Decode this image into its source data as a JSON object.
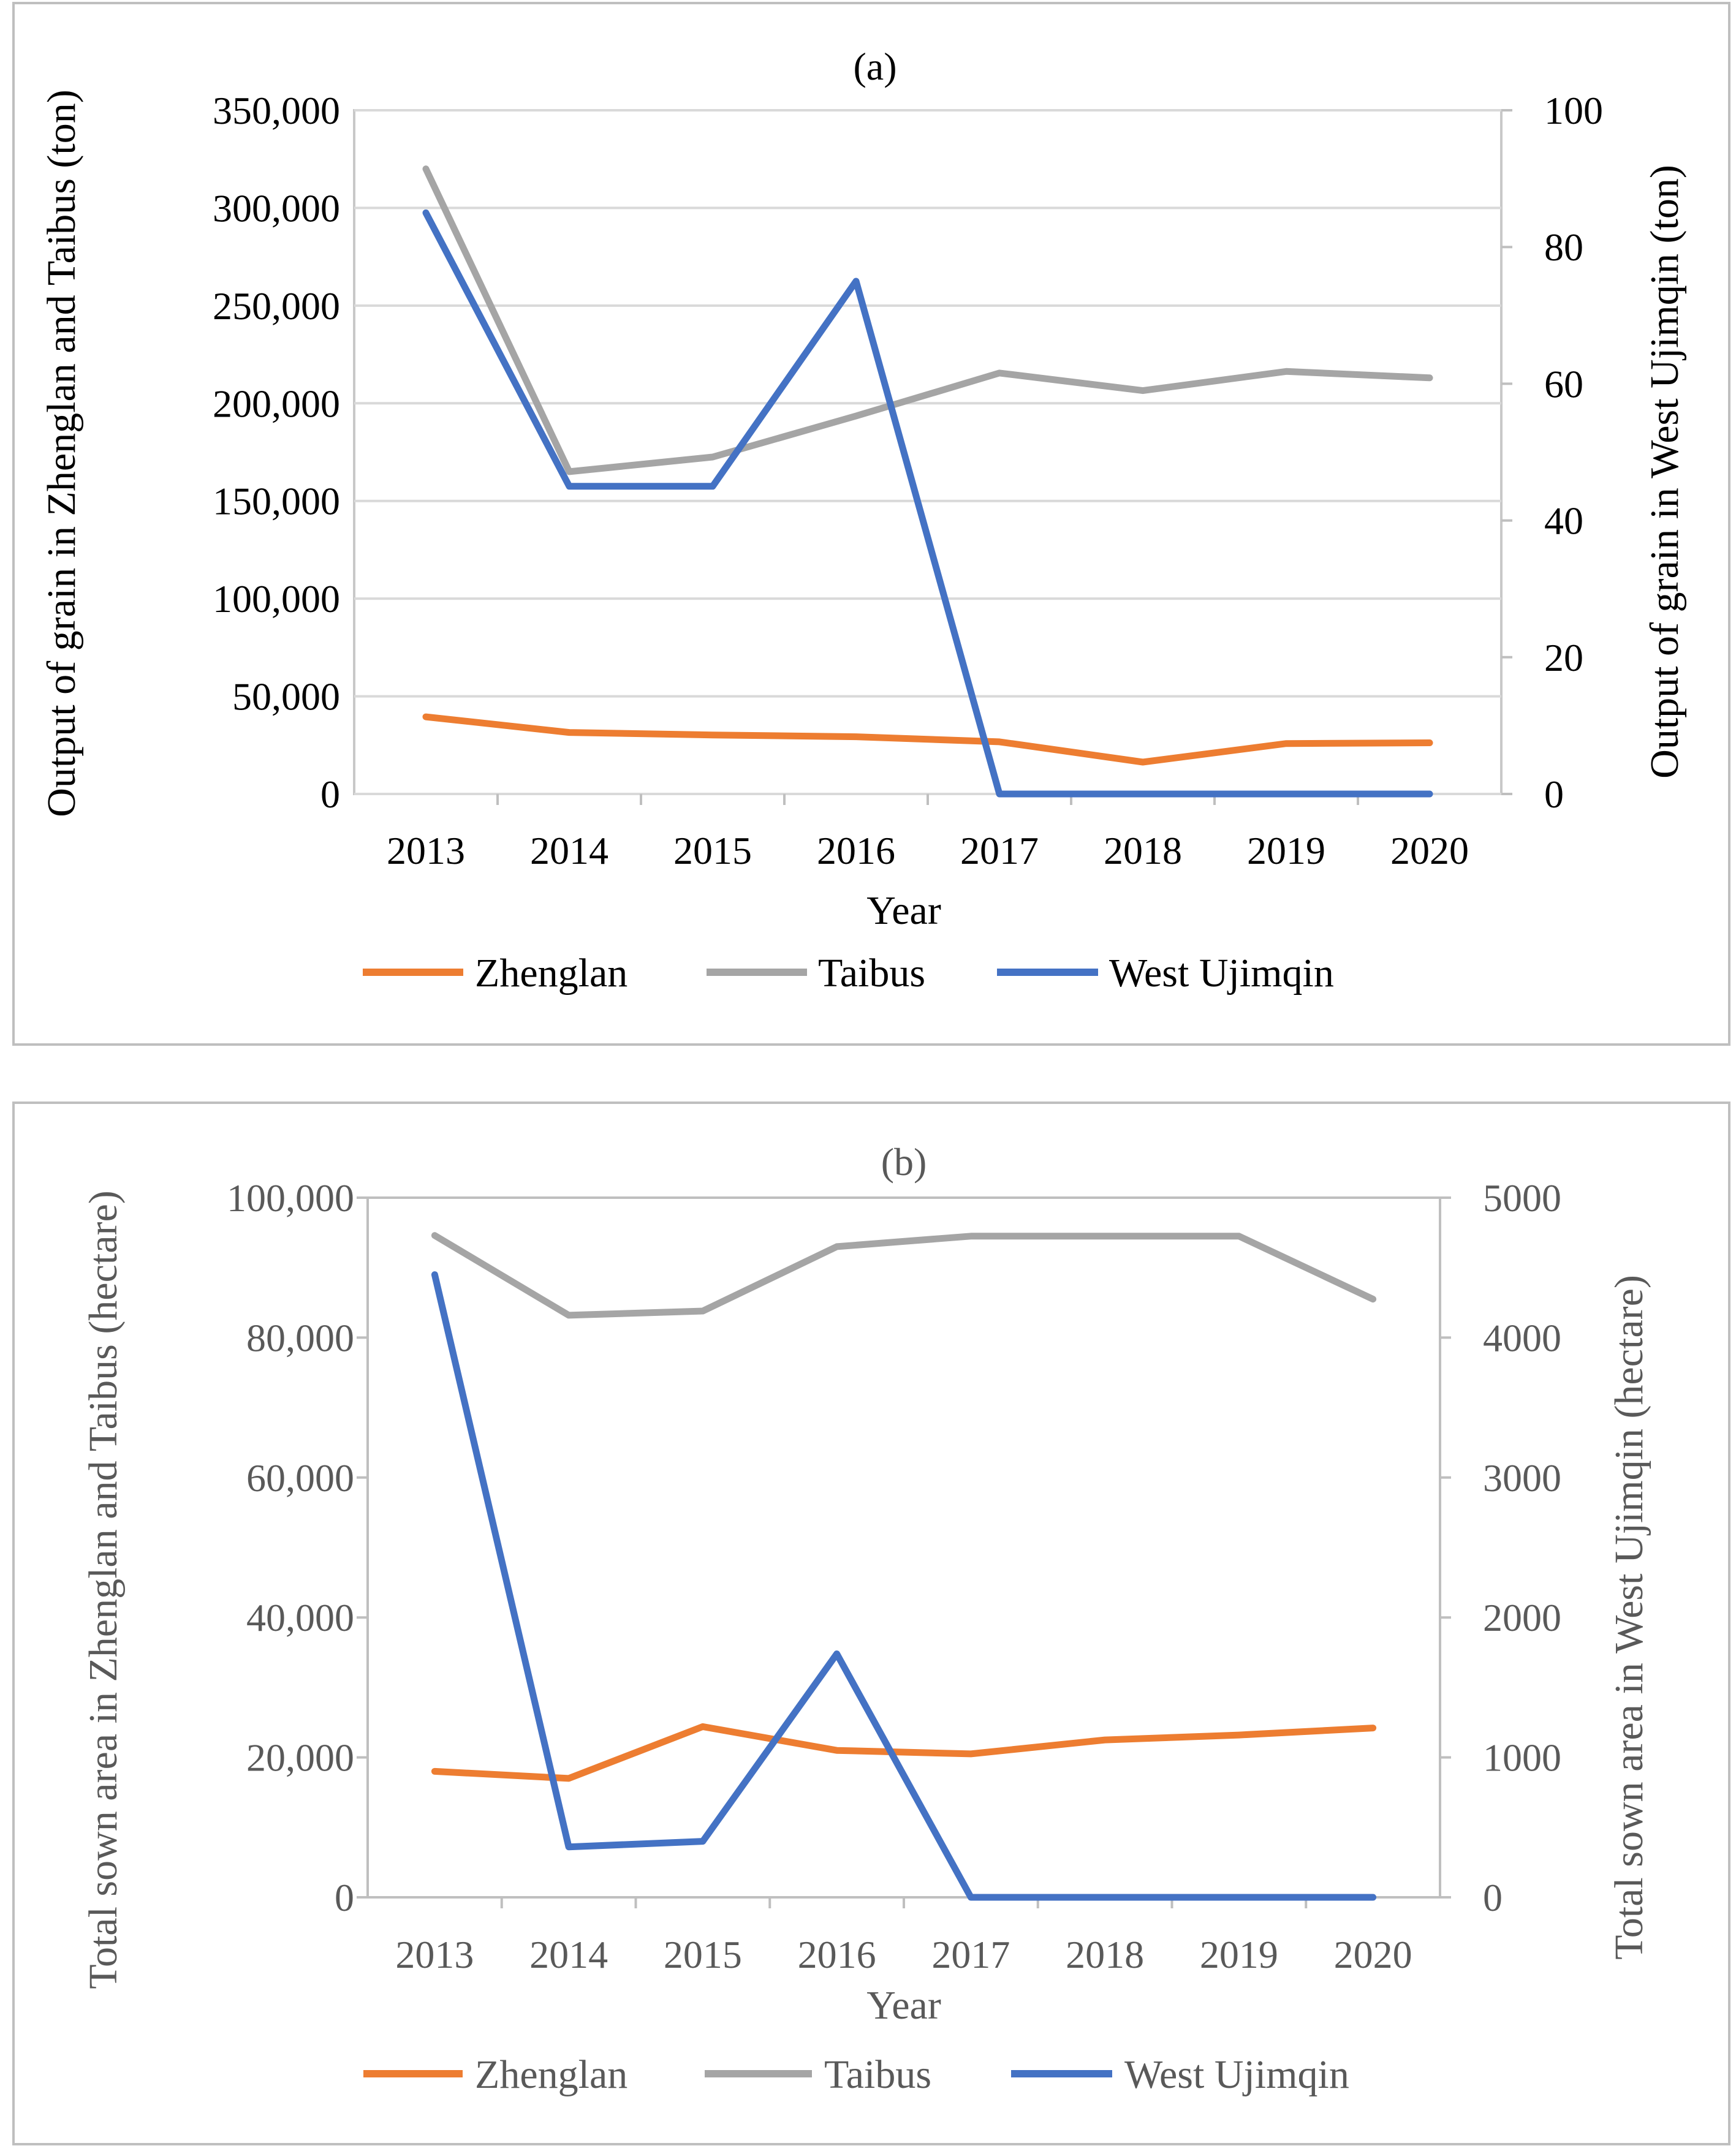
{
  "chart_data": [
    {
      "type": "line",
      "title": "(a)",
      "xlabel": "Year",
      "ylabel_left": "Output of grain in Zhenglan and Taibus (ton)",
      "ylabel_right": "Output of grain in West Ujimqin (ton)",
      "categories": [
        "2013",
        "2014",
        "2015",
        "2016",
        "2017",
        "2018",
        "2019",
        "2020"
      ],
      "ylim_left": [
        0,
        350000
      ],
      "ylim_right": [
        0,
        100
      ],
      "left_ticks": [
        "0",
        "50,000",
        "100,000",
        "150,000",
        "200,000",
        "250,000",
        "300,000",
        "350,000"
      ],
      "right_ticks": [
        "0",
        "20",
        "40",
        "60",
        "80",
        "100"
      ],
      "grid": "horizontal",
      "legend": "bottom",
      "text_color": "#000000",
      "series": [
        {
          "name": "Zhenglan",
          "axis": "left",
          "color": "#ED7D31",
          "values": [
            39500,
            31500,
            30200,
            29300,
            26700,
            16300,
            25800,
            26200
          ]
        },
        {
          "name": "Taibus",
          "axis": "left",
          "color": "#A5A5A5",
          "values": [
            320000,
            165000,
            172500,
            193500,
            215500,
            206500,
            216300,
            213000
          ]
        },
        {
          "name": "West Ujimqin",
          "axis": "right",
          "color": "#4472C4",
          "values": [
            85,
            45,
            45,
            75,
            0,
            0,
            0,
            0
          ]
        }
      ]
    },
    {
      "type": "line",
      "title": "(b)",
      "xlabel": "Year",
      "ylabel_left": "Total sown area in Zhenglan and Taibus (hectare)",
      "ylabel_right": "Total sown area in West Ujimqin (hectare)",
      "categories": [
        "2013",
        "2014",
        "2015",
        "2016",
        "2017",
        "2018",
        "2019",
        "2020"
      ],
      "ylim_left": [
        0,
        100000
      ],
      "ylim_right": [
        0,
        5000
      ],
      "left_ticks": [
        "0",
        "20,000",
        "40,000",
        "60,000",
        "80,000",
        "100,000"
      ],
      "right_ticks": [
        "0",
        "1000",
        "2000",
        "3000",
        "4000",
        "5000"
      ],
      "grid": "none",
      "legend": "bottom",
      "text_color": "#595959",
      "series": [
        {
          "name": "Zhenglan",
          "axis": "left",
          "color": "#ED7D31",
          "values": [
            18000,
            17000,
            24400,
            21000,
            20500,
            22500,
            23200,
            24200
          ]
        },
        {
          "name": "Taibus",
          "axis": "left",
          "color": "#A5A5A5",
          "values": [
            94600,
            83200,
            83800,
            93000,
            94500,
            94500,
            94500,
            85500
          ]
        },
        {
          "name": "West Ujimqin",
          "axis": "right",
          "color": "#4472C4",
          "values": [
            4450,
            360,
            400,
            1740,
            0,
            0,
            0,
            0
          ]
        }
      ]
    }
  ]
}
